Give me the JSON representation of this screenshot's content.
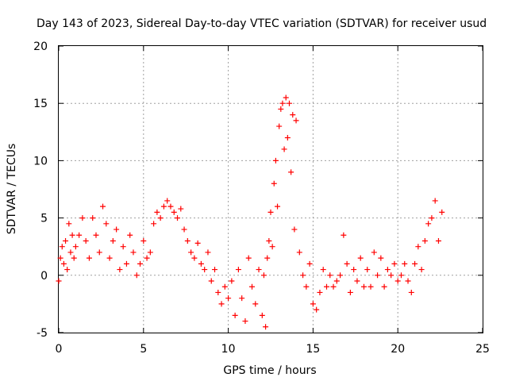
{
  "chart_data": {
    "type": "scatter",
    "title": "Day 143 of 2023, Sidereal Day-to-day VTEC variation (SDTVAR) for receiver usud",
    "xlabel": "GPS time / hours",
    "ylabel": "SDTVAR / TECUs",
    "xlim": [
      0,
      25
    ],
    "ylim": [
      -5,
      20
    ],
    "xticks": [
      "0",
      "5",
      "10",
      "15",
      "20",
      "25"
    ],
    "yticks": [
      "-5",
      "0",
      "5",
      "10",
      "15",
      "20"
    ],
    "grid": true,
    "marker": "+",
    "color": "#ff0000",
    "series": [
      {
        "name": "SDTVAR",
        "x": [
          0.0,
          0.1,
          0.2,
          0.3,
          0.4,
          0.5,
          0.6,
          0.7,
          0.8,
          0.9,
          1.0,
          1.2,
          1.4,
          1.6,
          1.8,
          2.0,
          2.2,
          2.4,
          2.6,
          2.8,
          3.0,
          3.2,
          3.4,
          3.6,
          3.8,
          4.0,
          4.2,
          4.4,
          4.6,
          4.8,
          5.0,
          5.2,
          5.4,
          5.6,
          5.8,
          6.0,
          6.2,
          6.4,
          6.6,
          6.8,
          7.0,
          7.2,
          7.4,
          7.6,
          7.8,
          8.0,
          8.2,
          8.4,
          8.6,
          8.8,
          9.0,
          9.2,
          9.4,
          9.6,
          9.8,
          10.0,
          10.2,
          10.4,
          10.6,
          10.8,
          11.0,
          11.2,
          11.4,
          11.6,
          11.8,
          12.0,
          12.1,
          12.2,
          12.3,
          12.4,
          12.5,
          12.6,
          12.7,
          12.8,
          12.9,
          13.0,
          13.1,
          13.2,
          13.3,
          13.4,
          13.5,
          13.6,
          13.7,
          13.8,
          13.9,
          14.0,
          14.2,
          14.4,
          14.6,
          14.8,
          15.0,
          15.2,
          15.4,
          15.6,
          15.8,
          16.0,
          16.2,
          16.4,
          16.6,
          16.8,
          17.0,
          17.2,
          17.4,
          17.6,
          17.8,
          18.0,
          18.2,
          18.4,
          18.6,
          18.8,
          19.0,
          19.2,
          19.4,
          19.6,
          19.8,
          20.0,
          20.2,
          20.4,
          20.6,
          20.8,
          21.0,
          21.2,
          21.4,
          21.6,
          21.8,
          22.0,
          22.2,
          22.4,
          22.6
        ],
        "y": [
          -0.5,
          1.5,
          2.5,
          1.0,
          3.0,
          0.5,
          4.5,
          2.0,
          3.5,
          1.5,
          2.5,
          3.5,
          5.0,
          3.0,
          1.5,
          5.0,
          3.5,
          2.0,
          6.0,
          4.5,
          1.5,
          3.0,
          4.0,
          0.5,
          2.5,
          1.0,
          3.5,
          2.0,
          0.0,
          1.0,
          3.0,
          1.5,
          2.0,
          4.5,
          5.5,
          5.0,
          6.0,
          6.5,
          6.0,
          5.5,
          5.0,
          5.8,
          4.0,
          3.0,
          2.0,
          1.5,
          2.8,
          1.0,
          0.5,
          2.0,
          -0.5,
          0.5,
          -1.5,
          -2.5,
          -1.0,
          -2.0,
          -0.5,
          -3.5,
          0.5,
          -2.0,
          -4.0,
          1.5,
          -1.0,
          -2.5,
          0.5,
          -3.5,
          0.0,
          -4.5,
          1.5,
          3.0,
          5.5,
          2.5,
          8.0,
          10.0,
          6.0,
          13.0,
          14.5,
          15.0,
          11.0,
          15.5,
          12.0,
          15.0,
          9.0,
          14.0,
          4.0,
          13.5,
          2.0,
          0.0,
          -1.0,
          1.0,
          -2.5,
          -3.0,
          -1.5,
          0.5,
          -1.0,
          0.0,
          -1.0,
          -0.5,
          0.0,
          3.5,
          1.0,
          -1.5,
          0.5,
          -0.5,
          1.5,
          -1.0,
          0.5,
          -1.0,
          2.0,
          0.0,
          1.5,
          -1.0,
          0.5,
          0.0,
          1.0,
          -0.5,
          0.0,
          1.0,
          -0.5,
          -1.5,
          1.0,
          2.5,
          0.5,
          3.0,
          4.5,
          5.0,
          6.5,
          3.0,
          5.5
        ]
      }
    ]
  }
}
